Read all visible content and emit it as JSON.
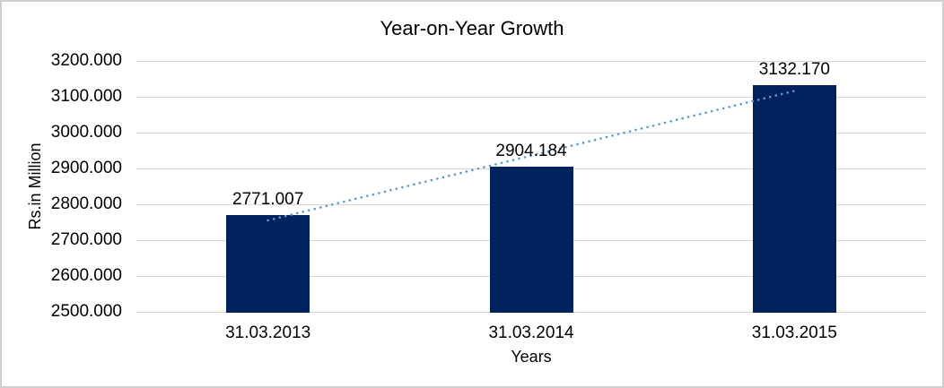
{
  "window": {
    "background": "#FFFFFF",
    "border_color": "#CFCFCF"
  },
  "chart_data": {
    "type": "bar",
    "title": "Year-on-Year Growth",
    "categories": [
      "31.03.2013",
      "31.03.2014",
      "31.03.2015"
    ],
    "values": [
      2771.007,
      2904.184,
      3132.17
    ],
    "value_labels": [
      "2771.007",
      "2904.184",
      "3132.170"
    ],
    "xlabel": "Years",
    "ylabel": "Rs.in Million",
    "ylim": [
      2500,
      3200
    ],
    "ytick_step": 100,
    "ytick_labels": [
      "2500.000",
      "2600.000",
      "2700.000",
      "2800.000",
      "2900.000",
      "3000.000",
      "3100.000",
      "3200.000"
    ],
    "grid": true,
    "legend": "none",
    "bar_color": "#02225E",
    "gridline_color": "#D9D9D9",
    "text_color": "#000000",
    "trendline": {
      "type": "linear",
      "style": "dotted",
      "color": "#5B9BD5",
      "start_category_index": 0,
      "end_category_index": 2,
      "start_value": 2755.2,
      "end_value": 3116.4
    }
  }
}
